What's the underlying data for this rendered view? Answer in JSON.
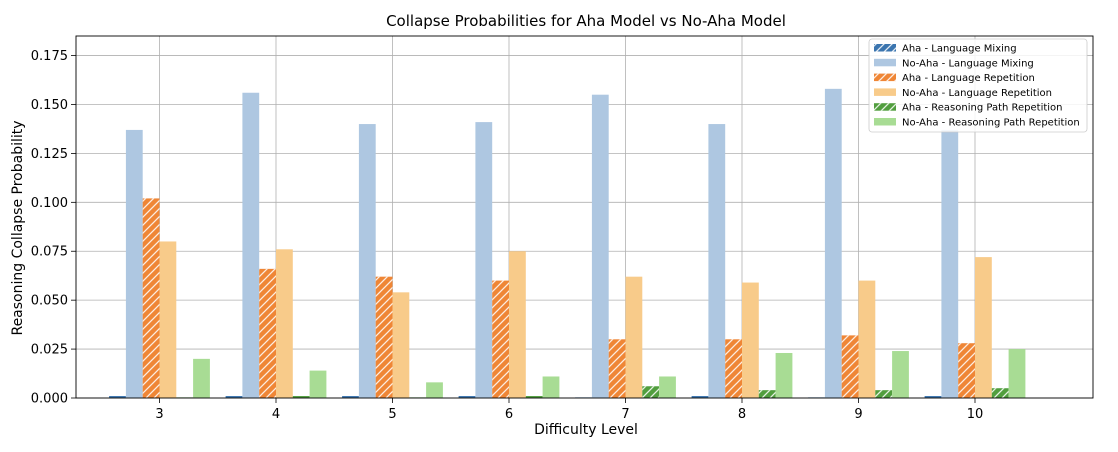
{
  "chart_data": {
    "type": "bar",
    "title": "Collapse Probabilities for Aha Model vs No-Aha Model",
    "xlabel": "Difficulty Level",
    "ylabel": "Reasoning Collapse Probability",
    "categories": [
      "3",
      "4",
      "5",
      "6",
      "7",
      "8",
      "9",
      "10"
    ],
    "ylim": [
      0,
      0.185
    ],
    "yticks": [
      "0.000",
      "0.025",
      "0.050",
      "0.075",
      "0.100",
      "0.125",
      "0.150",
      "0.175"
    ],
    "grid": true,
    "legend_position": "top-right",
    "series": [
      {
        "name": "Aha - Language Mixing",
        "values": [
          0.001,
          0.001,
          0.001,
          0.001,
          0.0,
          0.001,
          0.0,
          0.001
        ],
        "color": "#3b75af",
        "hatched": true
      },
      {
        "name": "No-Aha - Language Mixing",
        "values": [
          0.137,
          0.156,
          0.14,
          0.141,
          0.155,
          0.14,
          0.158,
          0.137
        ],
        "color": "#aec7e1",
        "hatched": false
      },
      {
        "name": "Aha - Language Repetition",
        "values": [
          0.102,
          0.066,
          0.062,
          0.06,
          0.03,
          0.03,
          0.032,
          0.028
        ],
        "color": "#ef8636",
        "hatched": true
      },
      {
        "name": "No-Aha - Language Repetition",
        "values": [
          0.08,
          0.076,
          0.054,
          0.075,
          0.062,
          0.059,
          0.06,
          0.072
        ],
        "color": "#f8cb8a",
        "hatched": false
      },
      {
        "name": "Aha - Reasoning Path Repetition",
        "values": [
          0.0,
          0.001,
          0.0,
          0.001,
          0.006,
          0.004,
          0.004,
          0.005
        ],
        "color": "#519e3e",
        "hatched": true
      },
      {
        "name": "No-Aha - Reasoning Path Repetition",
        "values": [
          0.02,
          0.014,
          0.008,
          0.011,
          0.011,
          0.023,
          0.024,
          0.025
        ],
        "color": "#a8dc94",
        "hatched": false
      }
    ]
  }
}
